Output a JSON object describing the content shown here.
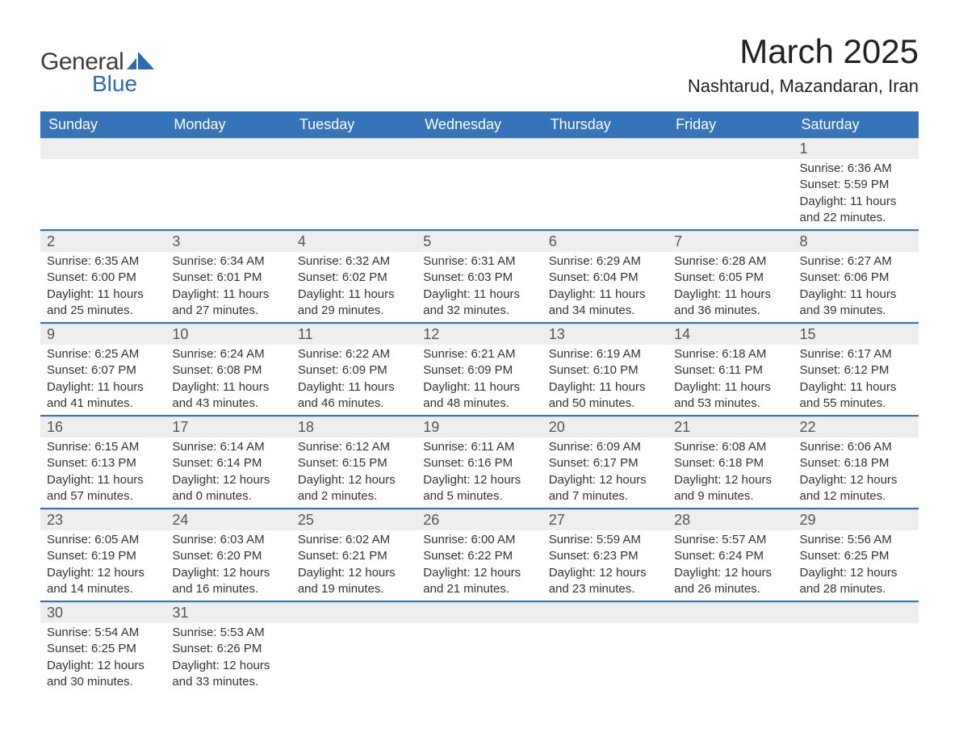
{
  "logo": {
    "word1": "General",
    "word2": "Blue",
    "accent_color": "#2d6bb0"
  },
  "header": {
    "title": "March 2025",
    "subtitle": "Nashtarud, Mazandaran, Iran"
  },
  "calendar": {
    "type": "table",
    "header_bg": "#3574b8",
    "header_fg": "#ffffff",
    "row_separator_color": "#3574b8",
    "daynum_bg": "#eeeeee",
    "text_color": "#333333",
    "day_headers": [
      "Sunday",
      "Monday",
      "Tuesday",
      "Wednesday",
      "Thursday",
      "Friday",
      "Saturday"
    ],
    "weeks": [
      [
        null,
        null,
        null,
        null,
        null,
        null,
        {
          "n": "1",
          "sunrise": "6:36 AM",
          "sunset": "5:59 PM",
          "dl1": "11 hours",
          "dl2": "and 22 minutes."
        }
      ],
      [
        {
          "n": "2",
          "sunrise": "6:35 AM",
          "sunset": "6:00 PM",
          "dl1": "11 hours",
          "dl2": "and 25 minutes."
        },
        {
          "n": "3",
          "sunrise": "6:34 AM",
          "sunset": "6:01 PM",
          "dl1": "11 hours",
          "dl2": "and 27 minutes."
        },
        {
          "n": "4",
          "sunrise": "6:32 AM",
          "sunset": "6:02 PM",
          "dl1": "11 hours",
          "dl2": "and 29 minutes."
        },
        {
          "n": "5",
          "sunrise": "6:31 AM",
          "sunset": "6:03 PM",
          "dl1": "11 hours",
          "dl2": "and 32 minutes."
        },
        {
          "n": "6",
          "sunrise": "6:29 AM",
          "sunset": "6:04 PM",
          "dl1": "11 hours",
          "dl2": "and 34 minutes."
        },
        {
          "n": "7",
          "sunrise": "6:28 AM",
          "sunset": "6:05 PM",
          "dl1": "11 hours",
          "dl2": "and 36 minutes."
        },
        {
          "n": "8",
          "sunrise": "6:27 AM",
          "sunset": "6:06 PM",
          "dl1": "11 hours",
          "dl2": "and 39 minutes."
        }
      ],
      [
        {
          "n": "9",
          "sunrise": "6:25 AM",
          "sunset": "6:07 PM",
          "dl1": "11 hours",
          "dl2": "and 41 minutes."
        },
        {
          "n": "10",
          "sunrise": "6:24 AM",
          "sunset": "6:08 PM",
          "dl1": "11 hours",
          "dl2": "and 43 minutes."
        },
        {
          "n": "11",
          "sunrise": "6:22 AM",
          "sunset": "6:09 PM",
          "dl1": "11 hours",
          "dl2": "and 46 minutes."
        },
        {
          "n": "12",
          "sunrise": "6:21 AM",
          "sunset": "6:09 PM",
          "dl1": "11 hours",
          "dl2": "and 48 minutes."
        },
        {
          "n": "13",
          "sunrise": "6:19 AM",
          "sunset": "6:10 PM",
          "dl1": "11 hours",
          "dl2": "and 50 minutes."
        },
        {
          "n": "14",
          "sunrise": "6:18 AM",
          "sunset": "6:11 PM",
          "dl1": "11 hours",
          "dl2": "and 53 minutes."
        },
        {
          "n": "15",
          "sunrise": "6:17 AM",
          "sunset": "6:12 PM",
          "dl1": "11 hours",
          "dl2": "and 55 minutes."
        }
      ],
      [
        {
          "n": "16",
          "sunrise": "6:15 AM",
          "sunset": "6:13 PM",
          "dl1": "11 hours",
          "dl2": "and 57 minutes."
        },
        {
          "n": "17",
          "sunrise": "6:14 AM",
          "sunset": "6:14 PM",
          "dl1": "12 hours",
          "dl2": "and 0 minutes."
        },
        {
          "n": "18",
          "sunrise": "6:12 AM",
          "sunset": "6:15 PM",
          "dl1": "12 hours",
          "dl2": "and 2 minutes."
        },
        {
          "n": "19",
          "sunrise": "6:11 AM",
          "sunset": "6:16 PM",
          "dl1": "12 hours",
          "dl2": "and 5 minutes."
        },
        {
          "n": "20",
          "sunrise": "6:09 AM",
          "sunset": "6:17 PM",
          "dl1": "12 hours",
          "dl2": "and 7 minutes."
        },
        {
          "n": "21",
          "sunrise": "6:08 AM",
          "sunset": "6:18 PM",
          "dl1": "12 hours",
          "dl2": "and 9 minutes."
        },
        {
          "n": "22",
          "sunrise": "6:06 AM",
          "sunset": "6:18 PM",
          "dl1": "12 hours",
          "dl2": "and 12 minutes."
        }
      ],
      [
        {
          "n": "23",
          "sunrise": "6:05 AM",
          "sunset": "6:19 PM",
          "dl1": "12 hours",
          "dl2": "and 14 minutes."
        },
        {
          "n": "24",
          "sunrise": "6:03 AM",
          "sunset": "6:20 PM",
          "dl1": "12 hours",
          "dl2": "and 16 minutes."
        },
        {
          "n": "25",
          "sunrise": "6:02 AM",
          "sunset": "6:21 PM",
          "dl1": "12 hours",
          "dl2": "and 19 minutes."
        },
        {
          "n": "26",
          "sunrise": "6:00 AM",
          "sunset": "6:22 PM",
          "dl1": "12 hours",
          "dl2": "and 21 minutes."
        },
        {
          "n": "27",
          "sunrise": "5:59 AM",
          "sunset": "6:23 PM",
          "dl1": "12 hours",
          "dl2": "and 23 minutes."
        },
        {
          "n": "28",
          "sunrise": "5:57 AM",
          "sunset": "6:24 PM",
          "dl1": "12 hours",
          "dl2": "and 26 minutes."
        },
        {
          "n": "29",
          "sunrise": "5:56 AM",
          "sunset": "6:25 PM",
          "dl1": "12 hours",
          "dl2": "and 28 minutes."
        }
      ],
      [
        {
          "n": "30",
          "sunrise": "5:54 AM",
          "sunset": "6:25 PM",
          "dl1": "12 hours",
          "dl2": "and 30 minutes."
        },
        {
          "n": "31",
          "sunrise": "5:53 AM",
          "sunset": "6:26 PM",
          "dl1": "12 hours",
          "dl2": "and 33 minutes."
        },
        null,
        null,
        null,
        null,
        null
      ]
    ],
    "labels": {
      "sunrise": "Sunrise:",
      "sunset": "Sunset:",
      "daylight": "Daylight:"
    }
  }
}
